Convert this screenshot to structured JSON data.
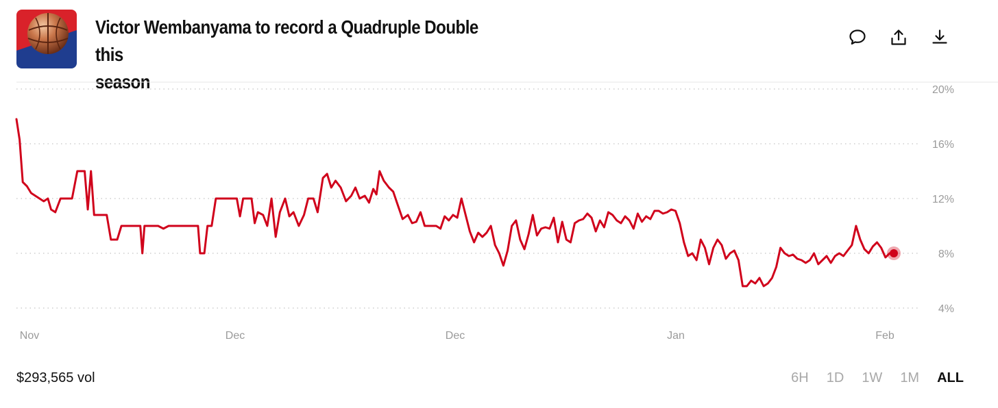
{
  "market": {
    "title_line1": "Victor Wembanyama to record a Quadruple Double this",
    "title_line2": "season",
    "thumbnail_icon": "basketball-icon",
    "colors": {
      "accent_line": "#d0021b",
      "thumb_red": "#d9222a",
      "thumb_blue": "#1f3d8f"
    }
  },
  "actions": [
    {
      "icon": "comment-icon"
    },
    {
      "icon": "share-icon"
    },
    {
      "icon": "download-icon"
    }
  ],
  "volume": {
    "label": "$293,565 vol"
  },
  "ranges": [
    "6H",
    "1D",
    "1W",
    "1M",
    "ALL"
  ],
  "active_range": "ALL",
  "chart_data": {
    "type": "line",
    "y_ticks": [
      "20%",
      "16%",
      "12%",
      "8%",
      "4%"
    ],
    "ylim": [
      4,
      20
    ],
    "x_ticks": [
      "Nov",
      "Dec",
      "Dec",
      "Jan",
      "Feb"
    ],
    "grid": true,
    "series": [
      {
        "current_value": 8,
        "points": [
          [
            0,
            17.8
          ],
          [
            0.3,
            16.3
          ],
          [
            0.6,
            13.2
          ],
          [
            1.0,
            12.9
          ],
          [
            1.4,
            12.4
          ],
          [
            2.0,
            12.1
          ],
          [
            2.6,
            11.8
          ],
          [
            3.0,
            12.0
          ],
          [
            3.3,
            11.2
          ],
          [
            3.7,
            11.0
          ],
          [
            4.2,
            12.0
          ],
          [
            4.7,
            12.0
          ],
          [
            5.3,
            12.0
          ],
          [
            5.8,
            14.0
          ],
          [
            6.5,
            14.0
          ],
          [
            6.8,
            11.2
          ],
          [
            7.1,
            14.0
          ],
          [
            7.4,
            10.8
          ],
          [
            8.0,
            10.8
          ],
          [
            8.6,
            10.8
          ],
          [
            9.0,
            9.0
          ],
          [
            9.6,
            9.0
          ],
          [
            10.0,
            10.0
          ],
          [
            11.0,
            10.0
          ],
          [
            11.8,
            10.0
          ],
          [
            12.0,
            8.0
          ],
          [
            12.2,
            10.0
          ],
          [
            13.5,
            10.0
          ],
          [
            14.0,
            9.8
          ],
          [
            14.5,
            10.0
          ],
          [
            15.5,
            10.0
          ],
          [
            16.0,
            10.0
          ],
          [
            17.3,
            10.0
          ],
          [
            17.5,
            8.0
          ],
          [
            17.9,
            8.0
          ],
          [
            18.2,
            10.0
          ],
          [
            18.6,
            10.0
          ],
          [
            19.0,
            12.0
          ],
          [
            20.0,
            12.0
          ],
          [
            21.0,
            12.0
          ],
          [
            21.3,
            10.7
          ],
          [
            21.6,
            12.0
          ],
          [
            22.4,
            12.0
          ],
          [
            22.7,
            10.2
          ],
          [
            23.0,
            11.0
          ],
          [
            23.5,
            10.8
          ],
          [
            23.9,
            10.0
          ],
          [
            24.3,
            12.0
          ],
          [
            24.7,
            9.2
          ],
          [
            25.1,
            11.0
          ],
          [
            25.6,
            12.0
          ],
          [
            26.0,
            10.7
          ],
          [
            26.4,
            11.0
          ],
          [
            26.9,
            10.0
          ],
          [
            27.4,
            10.8
          ],
          [
            27.8,
            12.0
          ],
          [
            28.3,
            12.0
          ],
          [
            28.7,
            11.0
          ],
          [
            29.2,
            13.5
          ],
          [
            29.6,
            13.8
          ],
          [
            30.0,
            12.8
          ],
          [
            30.4,
            13.3
          ],
          [
            30.9,
            12.8
          ],
          [
            31.4,
            11.8
          ],
          [
            31.9,
            12.2
          ],
          [
            32.3,
            12.8
          ],
          [
            32.7,
            12.0
          ],
          [
            33.2,
            12.2
          ],
          [
            33.6,
            11.7
          ],
          [
            34.0,
            12.7
          ],
          [
            34.3,
            12.3
          ],
          [
            34.6,
            14.0
          ],
          [
            35.0,
            13.3
          ],
          [
            35.5,
            12.8
          ],
          [
            35.9,
            12.5
          ],
          [
            36.3,
            11.6
          ],
          [
            36.8,
            10.5
          ],
          [
            37.3,
            10.8
          ],
          [
            37.7,
            10.2
          ],
          [
            38.1,
            10.3
          ],
          [
            38.5,
            11.0
          ],
          [
            38.9,
            10.0
          ],
          [
            39.5,
            10.0
          ],
          [
            40.0,
            10.0
          ],
          [
            40.4,
            9.8
          ],
          [
            40.8,
            10.7
          ],
          [
            41.2,
            10.4
          ],
          [
            41.6,
            10.8
          ],
          [
            42.0,
            10.6
          ],
          [
            42.4,
            12.0
          ],
          [
            42.8,
            10.8
          ],
          [
            43.2,
            9.6
          ],
          [
            43.6,
            8.8
          ],
          [
            44.0,
            9.5
          ],
          [
            44.4,
            9.2
          ],
          [
            44.8,
            9.5
          ],
          [
            45.2,
            10.0
          ],
          [
            45.6,
            8.6
          ],
          [
            46.0,
            8.0
          ],
          [
            46.4,
            7.1
          ],
          [
            46.8,
            8.2
          ],
          [
            47.2,
            10.0
          ],
          [
            47.6,
            10.4
          ],
          [
            48.0,
            9.0
          ],
          [
            48.4,
            8.3
          ],
          [
            48.8,
            9.4
          ],
          [
            49.2,
            10.8
          ],
          [
            49.6,
            9.3
          ],
          [
            50.0,
            9.8
          ],
          [
            50.4,
            9.9
          ],
          [
            50.8,
            9.8
          ],
          [
            51.2,
            10.6
          ],
          [
            51.6,
            8.8
          ],
          [
            52.0,
            10.3
          ],
          [
            52.4,
            9.0
          ],
          [
            52.8,
            8.8
          ],
          [
            53.2,
            10.2
          ],
          [
            53.6,
            10.4
          ],
          [
            54.0,
            10.5
          ],
          [
            54.4,
            10.9
          ],
          [
            54.8,
            10.6
          ],
          [
            55.2,
            9.6
          ],
          [
            55.6,
            10.4
          ],
          [
            56.0,
            9.9
          ],
          [
            56.4,
            11.0
          ],
          [
            56.8,
            10.8
          ],
          [
            57.2,
            10.4
          ],
          [
            57.6,
            10.2
          ],
          [
            58.0,
            10.7
          ],
          [
            58.4,
            10.4
          ],
          [
            58.8,
            9.8
          ],
          [
            59.2,
            10.9
          ],
          [
            59.6,
            10.3
          ],
          [
            60.0,
            10.7
          ],
          [
            60.4,
            10.5
          ],
          [
            60.8,
            11.1
          ],
          [
            61.2,
            11.1
          ],
          [
            61.6,
            10.9
          ],
          [
            62.0,
            11.0
          ],
          [
            62.4,
            11.2
          ],
          [
            62.8,
            11.1
          ],
          [
            63.2,
            10.2
          ],
          [
            63.6,
            8.8
          ],
          [
            64.0,
            7.8
          ],
          [
            64.4,
            8.0
          ],
          [
            64.8,
            7.5
          ],
          [
            65.2,
            9.0
          ],
          [
            65.6,
            8.4
          ],
          [
            66.0,
            7.2
          ],
          [
            66.4,
            8.4
          ],
          [
            66.8,
            9.0
          ],
          [
            67.2,
            8.6
          ],
          [
            67.6,
            7.6
          ],
          [
            68.0,
            8.0
          ],
          [
            68.4,
            8.2
          ],
          [
            68.8,
            7.5
          ],
          [
            69.2,
            5.6
          ],
          [
            69.6,
            5.6
          ],
          [
            70.0,
            6.0
          ],
          [
            70.4,
            5.8
          ],
          [
            70.8,
            6.2
          ],
          [
            71.2,
            5.6
          ],
          [
            71.6,
            5.8
          ],
          [
            72.0,
            6.2
          ],
          [
            72.4,
            7.0
          ],
          [
            72.8,
            8.4
          ],
          [
            73.2,
            8.0
          ],
          [
            73.6,
            7.8
          ],
          [
            74.0,
            7.9
          ],
          [
            74.4,
            7.6
          ],
          [
            74.8,
            7.5
          ],
          [
            75.2,
            7.3
          ],
          [
            75.6,
            7.5
          ],
          [
            76.0,
            8.0
          ],
          [
            76.4,
            7.2
          ],
          [
            76.8,
            7.5
          ],
          [
            77.2,
            7.8
          ],
          [
            77.6,
            7.3
          ],
          [
            78.0,
            7.8
          ],
          [
            78.4,
            8.0
          ],
          [
            78.8,
            7.8
          ],
          [
            79.2,
            8.2
          ],
          [
            79.6,
            8.6
          ],
          [
            80.0,
            10.0
          ],
          [
            80.4,
            9.0
          ],
          [
            80.8,
            8.3
          ],
          [
            81.2,
            8.0
          ],
          [
            81.6,
            8.5
          ],
          [
            82.0,
            8.8
          ],
          [
            82.4,
            8.4
          ],
          [
            82.8,
            7.7
          ],
          [
            83.2,
            8.0
          ],
          [
            83.6,
            8.0
          ]
        ]
      }
    ]
  }
}
